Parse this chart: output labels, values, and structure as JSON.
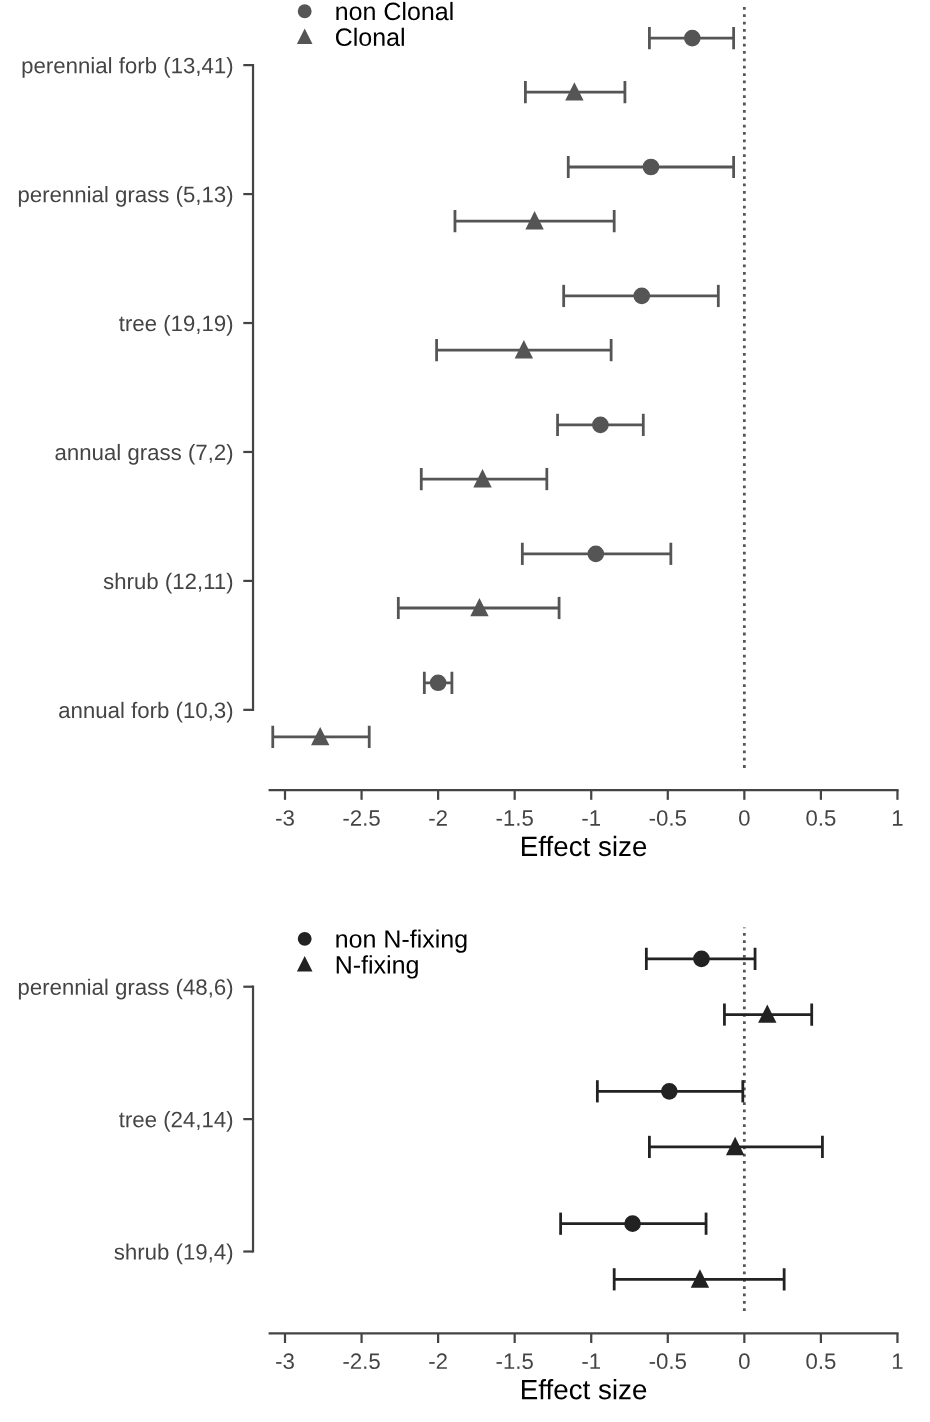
{
  "chart_data": [
    {
      "type": "scatter",
      "orientation": "horizontal",
      "categories": [
        "perennial forb (13,41)",
        "perennial grass (5,13)",
        "tree (19,19)",
        "annual grass (7,2)",
        "shrub (12,11)",
        "annual forb (10,3)"
      ],
      "series": [
        {
          "name": "non Clonal",
          "color": "#555555",
          "marker": "circle",
          "values": [
            -0.34,
            -0.61,
            -0.67,
            -0.94,
            -0.97,
            -2.0
          ],
          "errors": [
            [
              -0.62,
              -0.07
            ],
            [
              -1.15,
              -0.07
            ],
            [
              -1.18,
              -0.17
            ],
            [
              -1.22,
              -0.66
            ],
            [
              -1.45,
              -0.48
            ],
            [
              -2.09,
              -1.91
            ]
          ]
        },
        {
          "name": "Clonal",
          "color": "#555555",
          "marker": "triangle",
          "values": [
            -1.11,
            -1.37,
            -1.44,
            -1.71,
            -1.73,
            -2.77
          ],
          "errors": [
            [
              -1.43,
              -0.78
            ],
            [
              -1.89,
              -0.85
            ],
            [
              -2.01,
              -0.87
            ],
            [
              -2.11,
              -1.29
            ],
            [
              -2.26,
              -1.21
            ],
            [
              -3.08,
              -2.45
            ]
          ]
        }
      ],
      "xlim": [
        -3.1,
        1
      ],
      "xticks": [
        -3,
        -2.5,
        -2,
        -1.5,
        -1,
        -0.5,
        0,
        0.5,
        1
      ],
      "xlabel": "Effect size",
      "ref_lines": [
        {
          "axis": "x",
          "value": 0,
          "color": "#555555",
          "line_style": "dotted"
        }
      ],
      "legend": "top left",
      "grid": false
    },
    {
      "type": "scatter",
      "orientation": "horizontal",
      "categories": [
        "perennial grass (48,6)",
        "tree (24,14)",
        "shrub (19,4)"
      ],
      "series": [
        {
          "name": "non N-fixing",
          "color": "#222222",
          "marker": "circle",
          "values": [
            -0.28,
            -0.49,
            -0.73
          ],
          "errors": [
            [
              -0.64,
              0.07
            ],
            [
              -0.96,
              -0.01
            ],
            [
              -1.2,
              -0.25
            ]
          ]
        },
        {
          "name": "N-fixing",
          "color": "#222222",
          "marker": "triangle",
          "values": [
            0.15,
            -0.06,
            -0.29
          ],
          "errors": [
            [
              -0.13,
              0.44
            ],
            [
              -0.62,
              0.51
            ],
            [
              -0.85,
              0.26
            ]
          ]
        }
      ],
      "xlim": [
        -3.1,
        1
      ],
      "xticks": [
        -3,
        -2.5,
        -2,
        -1.5,
        -1,
        -0.5,
        0,
        0.5,
        1
      ],
      "xlabel": "Effect size",
      "ref_lines": [
        {
          "axis": "x",
          "value": 0,
          "color": "#555555",
          "line_style": "dotted"
        }
      ],
      "legend": "top left",
      "grid": false
    }
  ]
}
